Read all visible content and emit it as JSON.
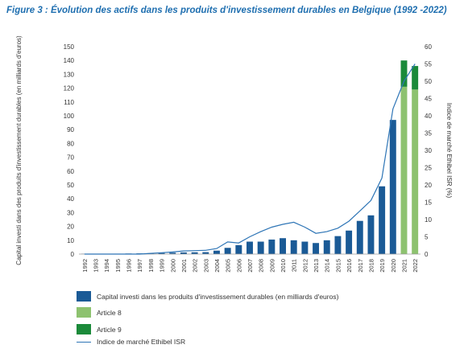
{
  "title": "Figure 3 : Évolution des actifs dans les produits d'investissement durables en Belgique (1992 -2022)",
  "colors": {
    "capital": "#1a5a96",
    "article8": "#8dc26f",
    "article9": "#1b8a3a",
    "index": "#2e75b6",
    "title": "#1f6fb0"
  },
  "chart_data": {
    "type": "bar",
    "title": "Figure 3 : Évolution des actifs dans les produits d'investissement durables en Belgique (1992 -2022)",
    "ylabel": "Capital investi dans des produits d'investissement durables (en milliards d'euros)",
    "ylabel2": "Indice de marché Ethibel ISR (%)",
    "ylim": [
      0,
      150
    ],
    "y2lim": [
      0,
      60
    ],
    "yticks": [
      0,
      10,
      20,
      30,
      40,
      50,
      60,
      70,
      80,
      90,
      100,
      110,
      120,
      130,
      140,
      150
    ],
    "y2ticks": [
      0,
      5,
      10,
      15,
      20,
      25,
      30,
      35,
      40,
      45,
      50,
      55,
      60
    ],
    "grid": false,
    "legend_position": "bottom",
    "categories": [
      "1992",
      "1993",
      "1994",
      "1995",
      "1996",
      "1997",
      "1998",
      "1999",
      "2000",
      "2001",
      "2002",
      "2003",
      "2004",
      "2005",
      "2006",
      "2007",
      "2008",
      "2009",
      "2010",
      "2011",
      "2012",
      "2013",
      "2014",
      "2015",
      "2016",
      "2017",
      "2018",
      "2019",
      "2020",
      "2021",
      "2022"
    ],
    "series": [
      {
        "name": "Capital investi dans les produits d'investissement durables (en milliards d'euros)",
        "type": "bar",
        "values": [
          0.2,
          0.2,
          0.2,
          0.3,
          0.4,
          0.5,
          0.6,
          0.8,
          1.0,
          1.2,
          1.3,
          1.4,
          2.5,
          4.5,
          6.5,
          9,
          9,
          10.5,
          11.5,
          10,
          9,
          8,
          10,
          13,
          17,
          24,
          28,
          49,
          97,
          null,
          null
        ]
      },
      {
        "name": "Article 8",
        "type": "bar",
        "stacked": true,
        "values": [
          null,
          null,
          null,
          null,
          null,
          null,
          null,
          null,
          null,
          null,
          null,
          null,
          null,
          null,
          null,
          null,
          null,
          null,
          null,
          null,
          null,
          null,
          null,
          null,
          null,
          null,
          null,
          null,
          null,
          121,
          119
        ]
      },
      {
        "name": "Article 9",
        "type": "bar",
        "stacked": true,
        "values": [
          null,
          null,
          null,
          null,
          null,
          null,
          null,
          null,
          null,
          null,
          null,
          null,
          null,
          null,
          null,
          null,
          null,
          null,
          null,
          null,
          null,
          null,
          null,
          null,
          null,
          null,
          null,
          null,
          null,
          19,
          17
        ]
      },
      {
        "name": "Indice de marché Ethibel ISR",
        "type": "line",
        "axis": "right",
        "values": [
          0,
          0,
          0,
          0,
          0,
          0,
          0.2,
          0.4,
          0.6,
          0.9,
          1.0,
          1.1,
          1.6,
          3.5,
          3.2,
          5.0,
          6.5,
          7.8,
          8.6,
          9.2,
          7.8,
          6.0,
          6.5,
          7.5,
          9.5,
          12.5,
          15.5,
          22,
          42,
          50,
          55
        ]
      }
    ]
  },
  "legend": [
    {
      "label": "Capital investi dans les produits d'investissement durables (en milliards d'euros)",
      "kind": "box",
      "color": "#1a5a96"
    },
    {
      "label": "Article 8",
      "kind": "box",
      "color": "#8dc26f"
    },
    {
      "label": "Article 9",
      "kind": "box",
      "color": "#1b8a3a"
    },
    {
      "label": "Indice de marché Ethibel ISR",
      "kind": "line",
      "color": "#2e75b6"
    }
  ]
}
